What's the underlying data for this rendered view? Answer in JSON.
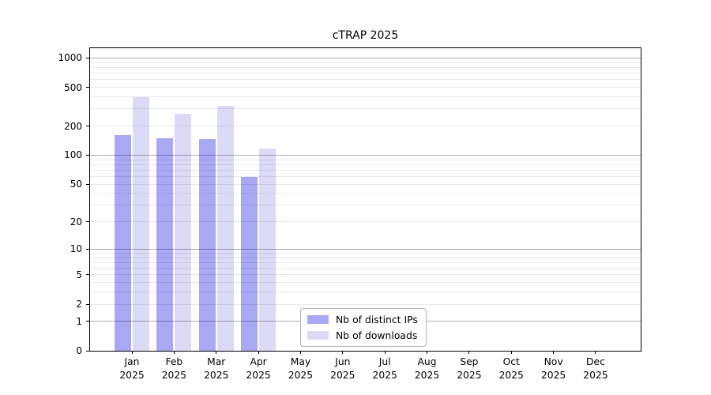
{
  "chart_data": {
    "type": "bar",
    "title": "cTRAP 2025",
    "categories": [
      "Jan 2025",
      "Feb 2025",
      "Mar 2025",
      "Apr 2025",
      "May 2025",
      "Jun 2025",
      "Jul 2025",
      "Aug 2025",
      "Sep 2025",
      "Oct 2025",
      "Nov 2025",
      "Dec 2025"
    ],
    "series": [
      {
        "key": "ips",
        "name": "Nb of distinct IPs",
        "color": "#a8a8f5",
        "values": [
          160,
          150,
          146,
          59,
          null,
          null,
          null,
          null,
          null,
          null,
          null,
          null
        ]
      },
      {
        "key": "downloads",
        "name": "Nb of downloads",
        "color": "#dbdbf8",
        "values": [
          395,
          268,
          321,
          117,
          null,
          null,
          null,
          null,
          null,
          null,
          null,
          null
        ]
      }
    ],
    "xlabel": "",
    "ylabel": "",
    "yscale": "log1p",
    "ylim": [
      0,
      1260
    ],
    "yticks": [
      0,
      1,
      2,
      5,
      10,
      20,
      50,
      100,
      200,
      500,
      1000
    ],
    "grid": "horizontal",
    "grid_major_at": [
      1,
      10,
      100,
      1000
    ],
    "grid_minor_multiples": [
      2,
      3,
      4,
      5,
      6,
      7,
      8,
      9
    ],
    "legend_position": "inside-bottom-center"
  },
  "colors": {
    "bar_ips": "#a8a8f5",
    "bar_downloads": "#dbdbf8",
    "grid_major": "#b0b0b0",
    "grid_minor": "#ededed",
    "axis": "#000000",
    "legend_border": "#b4b4b4",
    "background": "#ffffff"
  }
}
